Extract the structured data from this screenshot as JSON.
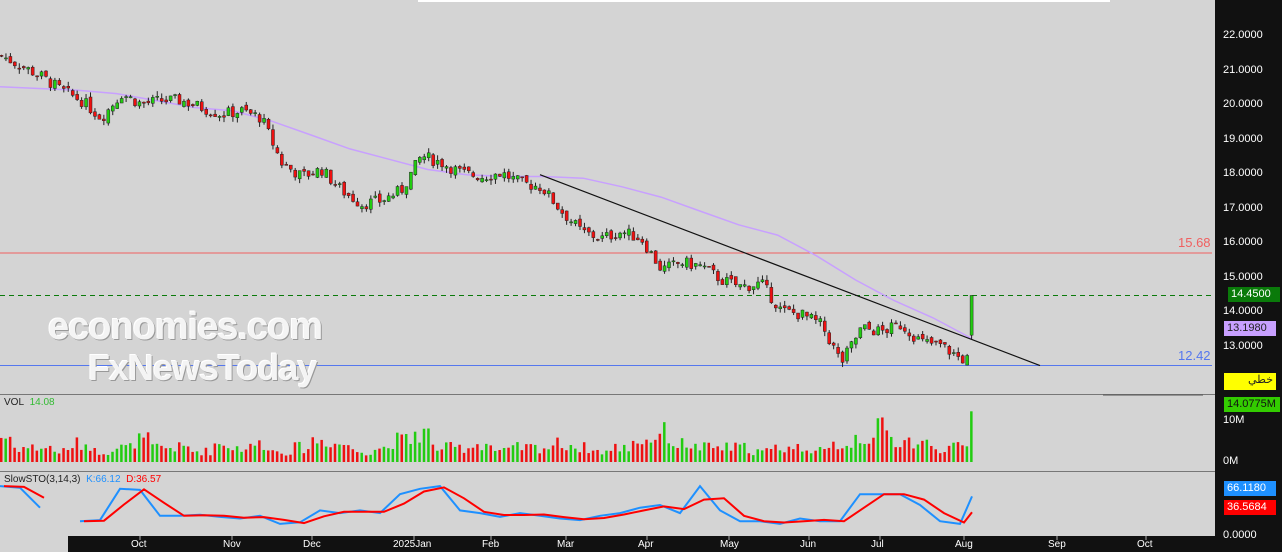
{
  "chart_data": {
    "type": "candlestick",
    "title": "",
    "y_ticks": [
      "22.0000",
      "21.0000",
      "20.0000",
      "19.0000",
      "18.0000",
      "17.0000",
      "16.0000",
      "15.0000",
      "14.0000",
      "13.0000"
    ],
    "ylim": [
      12.0,
      23.0
    ],
    "x_ticks": [
      "Oct",
      "Nov",
      "Dec",
      "2025Jan",
      "Feb",
      "Mar",
      "Apr",
      "May",
      "Jun",
      "Jul",
      "Aug",
      "Sep",
      "Oct"
    ],
    "close_samples": [
      21.4,
      21.1,
      20.8,
      20.4,
      20.1,
      19.6,
      20.3,
      20.0,
      20.1,
      20.1,
      19.9,
      19.7,
      19.8,
      19.6,
      18.3,
      17.9,
      18.1,
      17.5,
      17.1,
      17.2,
      17.5,
      18.5,
      18.3,
      18.0,
      17.9,
      18.0,
      17.7,
      17.6,
      16.9,
      16.3,
      16.1,
      16.3,
      16.1,
      15.2,
      15.4,
      15.3,
      14.9,
      14.7,
      14.8,
      14.0,
      13.9,
      13.6,
      12.5,
      13.5,
      13.4,
      13.6,
      13.1,
      13.0,
      12.6,
      14.45
    ],
    "ma_samples": [
      20.5,
      20.45,
      20.4,
      20.3,
      20.1,
      19.9,
      19.8,
      19.5,
      19.1,
      18.7,
      18.4,
      18.1,
      17.95,
      17.9,
      17.9,
      17.85,
      17.6,
      17.3,
      16.9,
      16.5,
      16.2,
      15.6,
      14.9,
      14.3,
      13.8,
      13.2
    ],
    "ma_last": "13.1980",
    "last_price": "14.4500",
    "hlines": [
      {
        "value": 15.68,
        "label": "15.68",
        "color": "#f06060"
      },
      {
        "value": 12.42,
        "label": "12.42",
        "color": "#5577ee"
      }
    ],
    "trendline": {
      "from": 17.95,
      "to": 12.42
    },
    "indicator_tag": "خطي",
    "volume": {
      "label": "VOL",
      "value": "14.08",
      "last": "14.0775M",
      "ticks": [
        "10M",
        "0M"
      ],
      "samples": [
        7,
        4,
        4,
        3,
        5,
        3,
        4,
        6,
        4,
        4,
        3,
        5,
        4,
        5,
        3,
        4,
        6,
        5,
        3,
        4,
        6,
        8,
        4,
        4,
        5,
        3,
        4,
        4,
        5,
        4,
        3,
        4,
        6,
        8,
        5,
        4,
        4,
        4,
        3,
        4,
        4,
        3,
        5,
        7,
        9,
        6,
        5,
        4,
        4,
        14.08
      ]
    },
    "stochastic": {
      "label": "SlowSTO(3,14,3)",
      "k_label": "K:66.12",
      "d_label": "D:36.57",
      "k_last": "66.1180",
      "d_last": "36.5684",
      "ticks": [
        "0.0000"
      ],
      "k_samples": [
        85,
        82,
        45,
        null,
        20,
        22,
        80,
        78,
        30,
        30,
        32,
        28,
        25,
        30,
        15,
        18,
        40,
        35,
        40,
        35,
        70,
        80,
        85,
        40,
        35,
        28,
        35,
        30,
        25,
        22,
        30,
        35,
        45,
        50,
        35,
        85,
        40,
        20,
        20,
        15,
        25,
        20,
        20,
        70,
        70,
        70,
        50,
        20,
        15,
        66
      ]
    },
    "colors": {
      "up": "#22cc11",
      "down": "#ee1111",
      "ma": "#c8a0ff",
      "k": "#1e90ff",
      "d": "#ff0000"
    }
  },
  "watermark": {
    "line1": "economies.com",
    "line2": "FxNewsToday"
  }
}
